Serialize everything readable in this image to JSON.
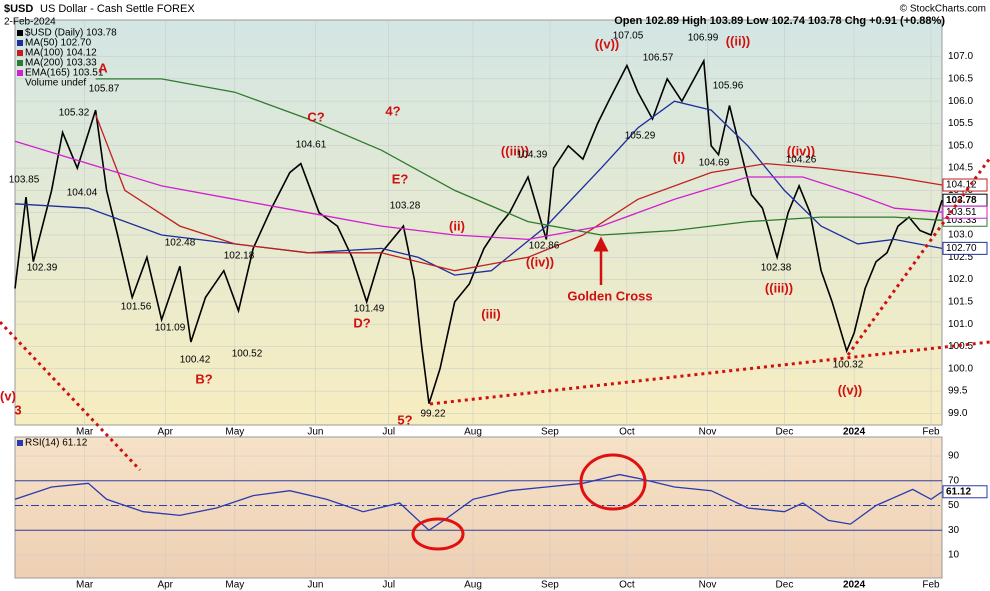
{
  "header": {
    "symbol": "$USD",
    "name": "US Dollar - Cash Settle FOREX",
    "date": "2-Feb-2024",
    "quote": "Open 102.89 High 103.89 Low 102.74 103.78 Chg +0.91 (+0.88%)",
    "credit": "© StockCharts.com"
  },
  "chart_data": [
    {
      "type": "line",
      "grid": true,
      "legend_extra": "Volume undef",
      "xlim": [
        0,
        253
      ],
      "ylim": [
        98.74,
        107.64
      ],
      "xticks": [
        {
          "value": 19,
          "label": "Mar"
        },
        {
          "value": 41,
          "label": "Apr"
        },
        {
          "value": 60,
          "label": "May"
        },
        {
          "value": 82,
          "label": "Jun"
        },
        {
          "value": 102,
          "label": "Jul"
        },
        {
          "value": 125,
          "label": "Aug"
        },
        {
          "value": 146,
          "label": "Sep"
        },
        {
          "value": 167,
          "label": "Oct"
        },
        {
          "value": 189,
          "label": "Nov"
        },
        {
          "value": 210,
          "label": "Dec"
        },
        {
          "value": 229,
          "label": "2024"
        },
        {
          "value": 250,
          "label": "Feb"
        }
      ],
      "yticks": [
        {
          "value": 99,
          "label": "99.0"
        },
        {
          "value": 99.5,
          "label": "99.5"
        },
        {
          "value": 100,
          "label": "100.0"
        },
        {
          "value": 100.5,
          "label": "100.5"
        },
        {
          "value": 101,
          "label": "101.0"
        },
        {
          "value": 101.5,
          "label": "101.5"
        },
        {
          "value": 102,
          "label": "102.0"
        },
        {
          "value": 102.5,
          "label": "102.5"
        },
        {
          "value": 103,
          "label": "103.0"
        },
        {
          "value": 103.5,
          "label": "103.5"
        },
        {
          "value": 104,
          "label": "104.0"
        },
        {
          "value": 104.5,
          "label": "104.5"
        },
        {
          "value": 105,
          "label": "105.0"
        },
        {
          "value": 105.5,
          "label": "105.5"
        },
        {
          "value": 106,
          "label": "106.0"
        },
        {
          "value": 106.5,
          "label": "106.5"
        },
        {
          "value": 107,
          "label": "107.0"
        }
      ],
      "series": [
        {
          "name": "$USD (Daily) 103.78",
          "color": "#000000",
          "end_label": "103.78",
          "x": [
            0,
            3,
            5,
            10,
            13,
            17,
            22,
            25,
            28,
            32,
            36,
            40,
            45,
            48,
            52,
            57,
            61,
            65,
            70,
            75,
            78,
            83,
            88,
            92,
            96,
            100,
            106,
            109,
            111,
            113,
            116,
            120,
            124,
            128,
            132,
            135,
            140,
            145,
            147,
            151,
            155,
            159,
            162,
            167,
            170,
            174,
            178,
            182,
            188,
            190,
            192,
            195,
            198,
            201,
            204,
            208,
            211,
            214,
            217,
            220,
            223,
            227,
            229,
            232,
            235,
            238,
            241,
            244,
            247,
            250,
            253
          ],
          "values": [
            101.8,
            103.85,
            102.4,
            104.0,
            105.3,
            104.5,
            105.8,
            104.0,
            103.0,
            101.6,
            102.5,
            101.1,
            102.3,
            100.6,
            101.6,
            102.2,
            101.3,
            102.7,
            103.6,
            104.4,
            104.6,
            103.5,
            103.2,
            102.5,
            101.5,
            102.6,
            103.2,
            102.0,
            100.5,
            99.22,
            100.0,
            101.5,
            101.9,
            102.7,
            103.2,
            103.5,
            104.3,
            102.9,
            104.5,
            105.0,
            104.7,
            105.5,
            106.0,
            106.8,
            106.2,
            105.6,
            106.5,
            106.0,
            106.9,
            105.0,
            104.8,
            105.9,
            104.9,
            103.9,
            103.6,
            102.5,
            103.5,
            104.1,
            103.5,
            102.2,
            101.5,
            100.4,
            100.8,
            101.8,
            102.4,
            102.6,
            103.2,
            103.4,
            103.1,
            103.0,
            103.78
          ]
        },
        {
          "name": "MA(50) 102.70",
          "color": "#1c2e9c",
          "end_label": "102.70",
          "x": [
            0,
            20,
            40,
            60,
            80,
            100,
            110,
            120,
            130,
            145,
            160,
            170,
            180,
            190,
            200,
            210,
            220,
            230,
            240,
            253
          ],
          "values": [
            103.7,
            103.6,
            103.0,
            102.8,
            102.6,
            102.7,
            102.5,
            102.1,
            102.2,
            103.2,
            104.5,
            105.4,
            106.0,
            105.8,
            105.0,
            104.0,
            103.2,
            102.8,
            102.9,
            102.7
          ]
        },
        {
          "name": "MA(100) 104.12",
          "color": "#c02020",
          "end_label": "104.12",
          "x": [
            22,
            30,
            45,
            60,
            80,
            100,
            120,
            140,
            155,
            170,
            190,
            205,
            220,
            240,
            253
          ],
          "values": [
            105.7,
            104.0,
            103.2,
            102.8,
            102.6,
            102.6,
            102.2,
            102.5,
            103.0,
            103.8,
            104.4,
            104.6,
            104.5,
            104.3,
            104.12
          ]
        },
        {
          "name": "MA(200) 103.33",
          "color": "#2d7a2d",
          "end_label": "103.33",
          "x": [
            22,
            40,
            60,
            80,
            100,
            120,
            140,
            160,
            180,
            200,
            220,
            240,
            253
          ],
          "values": [
            106.5,
            106.5,
            106.2,
            105.6,
            104.9,
            104.0,
            103.3,
            103.0,
            103.1,
            103.3,
            103.4,
            103.4,
            103.33
          ]
        },
        {
          "name": "EMA(165) 103.51",
          "color": "#d020d0",
          "end_label": "103.51",
          "x": [
            0,
            20,
            40,
            60,
            80,
            100,
            120,
            140,
            160,
            180,
            200,
            215,
            230,
            240,
            253
          ],
          "values": [
            105.1,
            104.6,
            104.1,
            103.8,
            103.5,
            103.2,
            103.0,
            102.9,
            103.2,
            103.8,
            104.3,
            104.3,
            103.9,
            103.6,
            103.51
          ]
        }
      ],
      "annotations": [
        "((v))",
        "107.05",
        "106.57",
        "106.99",
        "((ii))",
        "105.96",
        "105.29",
        "104.69",
        "(i)",
        "((iii))",
        "104.39",
        "102.86",
        "((iv))",
        "Golden Cross",
        "(iii)",
        "(ii)",
        "99.22",
        "5?",
        "E?",
        "103.28",
        "D?",
        "101.49",
        "4?",
        "C?",
        "104.61",
        "A",
        "105.32",
        "105.87",
        "103.85",
        "104.04",
        "102.39",
        "102.48",
        "102.18",
        "101.56",
        "101.09",
        "100.42",
        "100.52",
        "B?",
        "(v)",
        "3",
        "((iv))",
        "104.26",
        "102.38",
        "((iii))",
        "100.32",
        "((v))"
      ],
      "annotation_red": [
        true,
        false,
        false,
        false,
        true,
        false,
        false,
        false,
        true,
        true,
        false,
        false,
        true,
        true,
        true,
        true,
        false,
        true,
        true,
        false,
        true,
        false,
        true,
        true,
        false,
        true,
        false,
        false,
        false,
        false,
        false,
        false,
        false,
        false,
        false,
        false,
        false,
        true,
        true,
        true,
        true,
        false,
        false,
        true,
        false,
        true
      ]
    },
    {
      "type": "line",
      "grid": true,
      "xlim": [
        0,
        253
      ],
      "ylim": [
        -8.6,
        105.4
      ],
      "xticks": [
        {
          "value": 19,
          "label": "Mar"
        },
        {
          "value": 41,
          "label": "Apr"
        },
        {
          "value": 60,
          "label": "May"
        },
        {
          "value": 82,
          "label": "Jun"
        },
        {
          "value": 102,
          "label": "Jul"
        },
        {
          "value": 125,
          "label": "Aug"
        },
        {
          "value": 146,
          "label": "Sep"
        },
        {
          "value": 167,
          "label": "Oct"
        },
        {
          "value": 189,
          "label": "Nov"
        },
        {
          "value": 210,
          "label": "Dec"
        },
        {
          "value": 229,
          "label": "2024"
        },
        {
          "value": 250,
          "label": "Feb"
        }
      ],
      "yticks": [
        10,
        30,
        50,
        70,
        90
      ],
      "reference_lines": [
        30,
        50,
        70
      ],
      "series": [
        {
          "name": "RSI(14) 61.12",
          "color": "#2a3ab0",
          "end_label": "61.12",
          "x": [
            0,
            10,
            20,
            25,
            35,
            45,
            55,
            65,
            75,
            85,
            95,
            105,
            113,
            118,
            125,
            135,
            145,
            155,
            165,
            170,
            180,
            190,
            200,
            210,
            215,
            222,
            228,
            235,
            245,
            250,
            253
          ],
          "values": [
            55,
            65,
            68,
            55,
            45,
            42,
            48,
            58,
            62,
            55,
            45,
            52,
            30,
            40,
            55,
            62,
            65,
            68,
            75,
            72,
            65,
            62,
            48,
            45,
            52,
            38,
            35,
            50,
            63,
            55,
            61.12
          ]
        }
      ]
    }
  ]
}
